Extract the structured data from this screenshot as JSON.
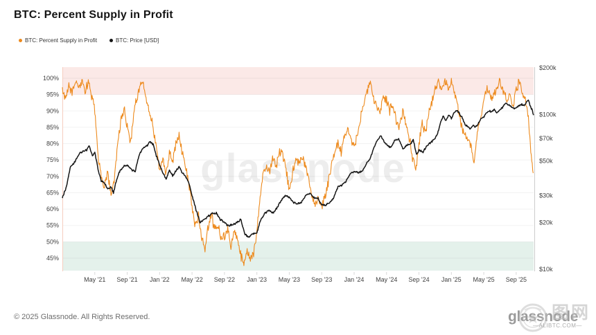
{
  "ui": {
    "title": "BTC: Percent Supply in Profit",
    "footer_left": "© 2025 Glassnode. All Rights Reserved.",
    "footer_logo": "glassnode",
    "watermark_center": "glassnode",
    "watermark_cjk": "图网",
    "watermark_site": "—ALIBTC.COM—"
  },
  "colors": {
    "supply_in_profit": "#ED8A1D",
    "price": "#151515",
    "band_above_95": "#FBE9E7",
    "band_below_50": "#E4F1EB",
    "grid": "rgba(0,0,0,0.05)",
    "axis_text": "#3F3F3F",
    "left_border": "#F6CDBF",
    "right_axis_line": "#CCCCCC",
    "tick": "#D9D9D9"
  },
  "chart_data": {
    "type": "line",
    "title": "BTC: Percent Supply in Profit",
    "x_unit": "months since Jan 2021",
    "x_range": [
      0,
      58.15
    ],
    "grid": "horizontal",
    "legend_position": "top-left",
    "x_ticks": [
      {
        "label": "May '21",
        "m": 4
      },
      {
        "label": "Sep '21",
        "m": 8
      },
      {
        "label": "Jan '22",
        "m": 12
      },
      {
        "label": "May '22",
        "m": 16
      },
      {
        "label": "Sep '22",
        "m": 20
      },
      {
        "label": "Jan '23",
        "m": 24
      },
      {
        "label": "May '23",
        "m": 28
      },
      {
        "label": "Sep '23",
        "m": 32
      },
      {
        "label": "Jan '24",
        "m": 36
      },
      {
        "label": "May '24",
        "m": 40
      },
      {
        "label": "Sep '24",
        "m": 44
      },
      {
        "label": "Jan '25",
        "m": 48
      },
      {
        "label": "May '25",
        "m": 52
      },
      {
        "label": "Sep '25",
        "m": 56
      }
    ],
    "y_left": {
      "label": "Percent Supply in Profit",
      "unit": "%",
      "scale": "linear",
      "range": [
        41.2,
        103.4
      ],
      "ticks": [
        "100%",
        "95%",
        "90%",
        "85%",
        "80%",
        "75%",
        "70%",
        "65%",
        "60%",
        "55%",
        "50%",
        "45%"
      ],
      "tick_values": [
        100,
        95,
        90,
        85,
        80,
        75,
        70,
        65,
        60,
        55,
        50,
        45
      ]
    },
    "y_right": {
      "label": "BTC Price",
      "unit": "USD",
      "scale": "log",
      "range_thousands": [
        9.7,
        200
      ],
      "ticks": [
        {
          "label": "$200k",
          "k": 200
        },
        {
          "label": "$100k",
          "k": 100
        },
        {
          "label": "$70k",
          "k": 70
        },
        {
          "label": "$50k",
          "k": 50
        },
        {
          "label": "$30k",
          "k": 30
        },
        {
          "label": "$20k",
          "k": 20
        },
        {
          "label": "$10k",
          "k": 10
        }
      ]
    },
    "bands": [
      {
        "name": "above-95-pct",
        "axis": "left",
        "from": 95,
        "to": 103.4,
        "color": "#FBE9E7"
      },
      {
        "name": "below-50-pct",
        "axis": "left",
        "from": 41.2,
        "to": 50,
        "color": "#E4F1EB"
      }
    ],
    "series": [
      {
        "name": "BTC: Percent Supply in Profit",
        "axis": "left",
        "unit": "%",
        "color": "#ED8A1D",
        "points": [
          [
            0,
            97
          ],
          [
            0.4,
            93
          ],
          [
            0.8,
            98
          ],
          [
            1.2,
            96
          ],
          [
            1.6,
            99
          ],
          [
            2,
            97
          ],
          [
            2.4,
            99
          ],
          [
            2.8,
            96
          ],
          [
            3.2,
            99
          ],
          [
            3.6,
            95
          ],
          [
            4,
            90
          ],
          [
            4.4,
            76
          ],
          [
            4.8,
            70
          ],
          [
            5.2,
            67
          ],
          [
            5.6,
            71
          ],
          [
            6,
            64
          ],
          [
            6.4,
            69
          ],
          [
            6.8,
            79
          ],
          [
            7.2,
            87
          ],
          [
            7.6,
            91
          ],
          [
            8,
            85
          ],
          [
            8.4,
            80
          ],
          [
            8.8,
            89
          ],
          [
            9.2,
            94
          ],
          [
            9.6,
            99
          ],
          [
            10,
            99
          ],
          [
            10.4,
            93
          ],
          [
            10.8,
            89
          ],
          [
            11.2,
            85
          ],
          [
            11.6,
            78
          ],
          [
            12,
            72
          ],
          [
            12.4,
            75
          ],
          [
            12.8,
            71
          ],
          [
            13.2,
            77
          ],
          [
            13.6,
            74
          ],
          [
            14,
            80
          ],
          [
            14.4,
            83
          ],
          [
            14.8,
            77
          ],
          [
            15.2,
            73
          ],
          [
            15.6,
            68
          ],
          [
            16,
            61
          ],
          [
            16.4,
            55
          ],
          [
            16.8,
            58
          ],
          [
            17.2,
            51
          ],
          [
            17.6,
            48
          ],
          [
            18,
            55
          ],
          [
            18.4,
            58
          ],
          [
            18.8,
            54
          ],
          [
            19.2,
            55
          ],
          [
            19.6,
            51
          ],
          [
            20,
            52
          ],
          [
            20.4,
            54
          ],
          [
            20.8,
            49
          ],
          [
            21.2,
            53
          ],
          [
            21.6,
            51
          ],
          [
            22,
            46
          ],
          [
            22.4,
            44
          ],
          [
            22.8,
            47
          ],
          [
            23.2,
            45
          ],
          [
            23.6,
            47
          ],
          [
            24,
            53
          ],
          [
            24.4,
            64
          ],
          [
            24.8,
            71
          ],
          [
            25.2,
            73
          ],
          [
            25.6,
            71
          ],
          [
            26,
            76
          ],
          [
            26.4,
            73
          ],
          [
            26.8,
            78
          ],
          [
            27.2,
            76
          ],
          [
            27.6,
            72
          ],
          [
            28,
            66
          ],
          [
            28.4,
            71
          ],
          [
            28.8,
            75
          ],
          [
            29.2,
            74
          ],
          [
            29.6,
            76
          ],
          [
            30,
            73
          ],
          [
            30.4,
            69
          ],
          [
            30.8,
            64
          ],
          [
            31.2,
            61
          ],
          [
            31.6,
            63
          ],
          [
            32,
            61
          ],
          [
            32.4,
            64
          ],
          [
            32.8,
            68
          ],
          [
            33.2,
            74
          ],
          [
            33.6,
            78
          ],
          [
            34,
            80
          ],
          [
            34.4,
            77
          ],
          [
            34.8,
            82
          ],
          [
            35.2,
            84
          ],
          [
            35.6,
            81
          ],
          [
            36,
            79
          ],
          [
            36.4,
            83
          ],
          [
            36.8,
            88
          ],
          [
            37.2,
            92
          ],
          [
            37.6,
            96
          ],
          [
            38,
            99
          ],
          [
            38.4,
            94
          ],
          [
            38.8,
            91
          ],
          [
            39.2,
            89
          ],
          [
            39.6,
            94
          ],
          [
            40,
            93
          ],
          [
            40.4,
            90
          ],
          [
            40.8,
            92
          ],
          [
            41.2,
            87
          ],
          [
            41.6,
            85
          ],
          [
            42,
            90
          ],
          [
            42.4,
            86
          ],
          [
            42.8,
            82
          ],
          [
            43.2,
            76
          ],
          [
            43.6,
            72
          ],
          [
            44,
            80
          ],
          [
            44.4,
            86
          ],
          [
            44.8,
            83
          ],
          [
            45.2,
            89
          ],
          [
            45.6,
            93
          ],
          [
            46,
            97
          ],
          [
            46.4,
            99
          ],
          [
            46.8,
            97
          ],
          [
            47.2,
            99
          ],
          [
            47.6,
            97
          ],
          [
            48,
            99
          ],
          [
            48.4,
            95
          ],
          [
            48.8,
            91
          ],
          [
            49.2,
            86
          ],
          [
            49.6,
            83
          ],
          [
            50,
            82
          ],
          [
            50.4,
            79
          ],
          [
            50.8,
            75
          ],
          [
            51.2,
            83
          ],
          [
            51.6,
            88
          ],
          [
            52,
            94
          ],
          [
            52.4,
            97
          ],
          [
            52.8,
            94
          ],
          [
            53.2,
            95
          ],
          [
            53.6,
            97
          ],
          [
            54,
            99
          ],
          [
            54.4,
            96
          ],
          [
            54.8,
            93
          ],
          [
            55.2,
            95
          ],
          [
            55.6,
            92
          ],
          [
            56,
            97
          ],
          [
            56.4,
            99
          ],
          [
            56.8,
            95
          ],
          [
            57.2,
            93
          ],
          [
            57.5,
            88
          ],
          [
            57.8,
            78
          ],
          [
            58.1,
            71
          ]
        ]
      },
      {
        "name": "BTC: Price [USD]",
        "axis": "right",
        "unit": "USD thousands",
        "color": "#151515",
        "points": [
          [
            0,
            29
          ],
          [
            0.5,
            34
          ],
          [
            1,
            46
          ],
          [
            1.5,
            49
          ],
          [
            2,
            55
          ],
          [
            2.5,
            58
          ],
          [
            3,
            59
          ],
          [
            3.3,
            63
          ],
          [
            3.7,
            54
          ],
          [
            4,
            57
          ],
          [
            4.4,
            44
          ],
          [
            4.8,
            37
          ],
          [
            5.2,
            36
          ],
          [
            5.6,
            33
          ],
          [
            6,
            34
          ],
          [
            6.3,
            31
          ],
          [
            6.7,
            38
          ],
          [
            7,
            42
          ],
          [
            7.5,
            46
          ],
          [
            8,
            47
          ],
          [
            8.5,
            44
          ],
          [
            9,
            43
          ],
          [
            9.5,
            55
          ],
          [
            10,
            61
          ],
          [
            10.5,
            63
          ],
          [
            10.8,
            67
          ],
          [
            11.2,
            64
          ],
          [
            11.6,
            54
          ],
          [
            12,
            47
          ],
          [
            12.4,
            42
          ],
          [
            12.8,
            38
          ],
          [
            13.2,
            44
          ],
          [
            13.6,
            40
          ],
          [
            14,
            43
          ],
          [
            14.4,
            46
          ],
          [
            14.8,
            42
          ],
          [
            15.2,
            40
          ],
          [
            15.6,
            36
          ],
          [
            16,
            30
          ],
          [
            16.5,
            24
          ],
          [
            17,
            20
          ],
          [
            17.5,
            21
          ],
          [
            18,
            22
          ],
          [
            18.5,
            23
          ],
          [
            19,
            23
          ],
          [
            19.5,
            21
          ],
          [
            20,
            20
          ],
          [
            20.5,
            19
          ],
          [
            21,
            19.5
          ],
          [
            21.5,
            20
          ],
          [
            22,
            21
          ],
          [
            22.5,
            17
          ],
          [
            23,
            16
          ],
          [
            23.5,
            17
          ],
          [
            24,
            17
          ],
          [
            24.5,
            21
          ],
          [
            25,
            23
          ],
          [
            25.5,
            24
          ],
          [
            26,
            23
          ],
          [
            26.5,
            25
          ],
          [
            27,
            28
          ],
          [
            27.5,
            30
          ],
          [
            28,
            29
          ],
          [
            28.5,
            27
          ],
          [
            29,
            26.5
          ],
          [
            29.5,
            27
          ],
          [
            30,
            30
          ],
          [
            30.5,
            31
          ],
          [
            31,
            29
          ],
          [
            31.5,
            29
          ],
          [
            32,
            26
          ],
          [
            32.5,
            26
          ],
          [
            33,
            27
          ],
          [
            33.5,
            29
          ],
          [
            34,
            34
          ],
          [
            34.5,
            35
          ],
          [
            35,
            37
          ],
          [
            35.5,
            41
          ],
          [
            36,
            43
          ],
          [
            36.5,
            42
          ],
          [
            37,
            43
          ],
          [
            37.5,
            48
          ],
          [
            38,
            52
          ],
          [
            38.5,
            62
          ],
          [
            39,
            70
          ],
          [
            39.3,
            73
          ],
          [
            39.7,
            66
          ],
          [
            40,
            64
          ],
          [
            40.5,
            61
          ],
          [
            41,
            68
          ],
          [
            41.5,
            69
          ],
          [
            42,
            60
          ],
          [
            42.5,
            63
          ],
          [
            43,
            65
          ],
          [
            43.3,
            68
          ],
          [
            43.7,
            55
          ],
          [
            44,
            59
          ],
          [
            44.5,
            57
          ],
          [
            45,
            63
          ],
          [
            45.5,
            66
          ],
          [
            46,
            70
          ],
          [
            46.3,
            75
          ],
          [
            46.7,
            90
          ],
          [
            47,
            97
          ],
          [
            47.3,
            92
          ],
          [
            47.7,
            99
          ],
          [
            48,
            94
          ],
          [
            48.3,
            102
          ],
          [
            48.7,
            106
          ],
          [
            49,
            101
          ],
          [
            49.3,
            96
          ],
          [
            49.7,
            85
          ],
          [
            50,
            84
          ],
          [
            50.3,
            81
          ],
          [
            50.7,
            84
          ],
          [
            51,
            83
          ],
          [
            51.3,
            87
          ],
          [
            51.7,
            95
          ],
          [
            52,
            96
          ],
          [
            52.3,
            103
          ],
          [
            52.7,
            105
          ],
          [
            53,
            104
          ],
          [
            53.3,
            107
          ],
          [
            53.6,
            102
          ],
          [
            54,
            108
          ],
          [
            54.3,
            110
          ],
          [
            54.7,
            118
          ],
          [
            55,
            116
          ],
          [
            55.3,
            113
          ],
          [
            55.7,
            110
          ],
          [
            56,
            109
          ],
          [
            56.3,
            113
          ],
          [
            56.7,
            116
          ],
          [
            57,
            114
          ],
          [
            57.3,
            121
          ],
          [
            57.5,
            124
          ],
          [
            57.7,
            115
          ],
          [
            58,
            106
          ],
          [
            58.15,
            99
          ]
        ]
      }
    ]
  }
}
